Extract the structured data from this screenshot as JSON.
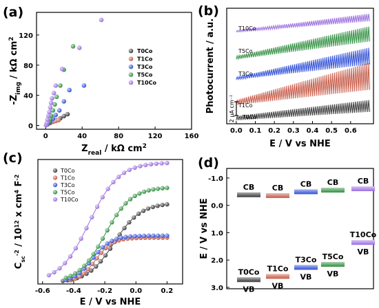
{
  "colors": {
    "T0Co": "#3a3a3a",
    "T1Co": "#c65a47",
    "T3Co": "#2f4fd8",
    "T5Co": "#2f8f3f",
    "T10Co": "#9a6ee0"
  },
  "chart_data": [
    {
      "panel": "(a)",
      "type": "scatter",
      "xlabel": "Z_real / kΩ cm²",
      "ylabel": "-Z_img / kΩ cm²",
      "xlim": [
        -10,
        160
      ],
      "ylim": [
        -5,
        150
      ],
      "xticks": [
        "0",
        "40",
        "80",
        "120",
        "160"
      ],
      "yticks": [
        "0",
        "40",
        "80",
        "120"
      ],
      "legend": [
        "T0Co",
        "T1Co",
        "T3Co",
        "T5Co",
        "T10Co"
      ],
      "legend_position": "center-right",
      "series": [
        {
          "name": "T0Co",
          "points": [
            [
              0.5,
              0.5
            ],
            [
              1,
              1
            ],
            [
              2,
              1.5
            ],
            [
              3,
              2.5
            ],
            [
              5,
              3.5
            ],
            [
              8,
              5
            ],
            [
              12,
              7
            ],
            [
              16,
              9.5
            ],
            [
              20,
              12.5
            ],
            [
              24,
              15
            ]
          ]
        },
        {
          "name": "T1Co",
          "points": [
            [
              0.5,
              0.5
            ],
            [
              1,
              1
            ],
            [
              2,
              2
            ],
            [
              3,
              3
            ],
            [
              5,
              4
            ],
            [
              8,
              5
            ],
            [
              11,
              6
            ],
            [
              14,
              7
            ]
          ]
        },
        {
          "name": "T3Co",
          "points": [
            [
              0.5,
              0.5
            ],
            [
              1,
              1
            ],
            [
              2,
              2
            ],
            [
              3,
              3
            ],
            [
              5,
              5
            ],
            [
              8,
              9
            ],
            [
              11,
              14
            ],
            [
              15,
              20
            ],
            [
              20,
              32
            ],
            [
              26,
              47
            ],
            [
              42,
              53
            ]
          ]
        },
        {
          "name": "T5Co",
          "points": [
            [
              0.5,
              0.5
            ],
            [
              1,
              1
            ],
            [
              2,
              2
            ],
            [
              3,
              4
            ],
            [
              4,
              6
            ],
            [
              5,
              9
            ],
            [
              6,
              13
            ],
            [
              8,
              20
            ],
            [
              10,
              28
            ],
            [
              12,
              38
            ],
            [
              16,
              53
            ],
            [
              20,
              74
            ],
            [
              30,
              105
            ]
          ]
        },
        {
          "name": "T10Co",
          "points": [
            [
              0.5,
              0.5
            ],
            [
              1,
              1.5
            ],
            [
              1.5,
              4
            ],
            [
              2,
              8
            ],
            [
              3,
              13
            ],
            [
              4,
              18
            ],
            [
              5,
              24
            ],
            [
              6,
              30
            ],
            [
              7,
              36
            ],
            [
              9,
              43
            ],
            [
              11,
              53
            ],
            [
              18,
              75
            ],
            [
              37,
              103
            ],
            [
              61,
              140
            ]
          ]
        }
      ]
    },
    {
      "panel": "(b)",
      "type": "line",
      "xlabel": "E / V vs NHE",
      "ylabel": "Photocurrent / a.u.",
      "xlim": [
        -0.05,
        0.72
      ],
      "xticks": [
        "0.0",
        "0.1",
        "0.2",
        "0.3",
        "0.4",
        "0.5",
        "0.6"
      ],
      "scale_bar_label": "2 μA cm⁻²",
      "series_labels_on_plot": [
        "T10Co",
        "T5Co",
        "T3Co",
        "T1Co",
        "T0Co"
      ],
      "series": [
        {
          "name": "T0Co",
          "baseline_start": 0.0,
          "baseline_end": 1.0,
          "spike_start": 0.5,
          "spike_end": 1.4
        },
        {
          "name": "T1Co",
          "baseline_start": 1.8,
          "baseline_end": 3.6,
          "spike_start": 0.6,
          "spike_end": 3.2
        },
        {
          "name": "T3Co",
          "baseline_start": 4.8,
          "baseline_end": 6.6,
          "spike_start": 0.3,
          "spike_end": 2.0
        },
        {
          "name": "T5Co",
          "baseline_start": 7.2,
          "baseline_end": 9.3,
          "spike_start": 0.4,
          "spike_end": 1.8
        },
        {
          "name": "T10Co",
          "baseline_start": 10.4,
          "baseline_end": 11.7,
          "spike_start": 0.2,
          "spike_end": 0.9
        }
      ],
      "y_total_span": 12.5
    },
    {
      "panel": "(c)",
      "type": "line",
      "xlabel": "E / V vs NHE",
      "ylabel": "C_sc^-2 / 10^12 x cm^4 F^-2",
      "xlim": [
        -0.63,
        0.3
      ],
      "ylim": [
        0,
        4.3
      ],
      "xticks": [
        "-0.6",
        "-0.4",
        "-0.2",
        "0.0",
        "0.2"
      ],
      "legend": [
        "T0Co",
        "T1Co",
        "T3Co",
        "T5Co",
        "T10Co"
      ],
      "legend_position": "top-left",
      "series": [
        {
          "name": "T0Co",
          "E_start": -0.47,
          "E_end": 0.2,
          "V_half": -0.14,
          "width": 0.085,
          "amplitude": 2.75,
          "offset": 0.05
        },
        {
          "name": "T1Co",
          "E_start": -0.42,
          "E_end": 0.2,
          "V_half": -0.26,
          "width": 0.055,
          "amplitude": 1.55,
          "offset": 0.05
        },
        {
          "name": "T3Co",
          "E_start": -0.45,
          "E_end": 0.2,
          "V_half": -0.28,
          "width": 0.06,
          "amplitude": 1.62,
          "offset": 0.05
        },
        {
          "name": "T5Co",
          "E_start": -0.45,
          "E_end": 0.2,
          "V_half": -0.2,
          "width": 0.085,
          "amplitude": 3.3,
          "offset": 0.05
        },
        {
          "name": "T10Co",
          "E_start": -0.56,
          "E_end": 0.2,
          "V_half": -0.3,
          "width": 0.095,
          "amplitude": 4.15,
          "offset": 0.05
        }
      ],
      "points_per_series": 23
    },
    {
      "panel": "(d)",
      "type": "band diagram",
      "ylabel": "E / V vs NHE",
      "ylim": [
        -1.35,
        3.05
      ],
      "yticks": [
        "-1.0",
        "0.0",
        "1.0",
        "2.0",
        "3.0"
      ],
      "ytick_values": [
        -1.0,
        0.0,
        1.0,
        2.0,
        3.0
      ],
      "cb_label": "CB",
      "vb_label": "VB",
      "materials": [
        {
          "name": "T0Co",
          "CB": -0.45,
          "VB": 2.78
        },
        {
          "name": "T1Co",
          "CB": -0.42,
          "VB": 2.66
        },
        {
          "name": "T3Co",
          "CB": -0.56,
          "VB": 2.33
        },
        {
          "name": "T5Co",
          "CB": -0.62,
          "VB": 2.22
        },
        {
          "name": "T10Co",
          "CB": -0.67,
          "VB": 1.42
        }
      ]
    }
  ]
}
